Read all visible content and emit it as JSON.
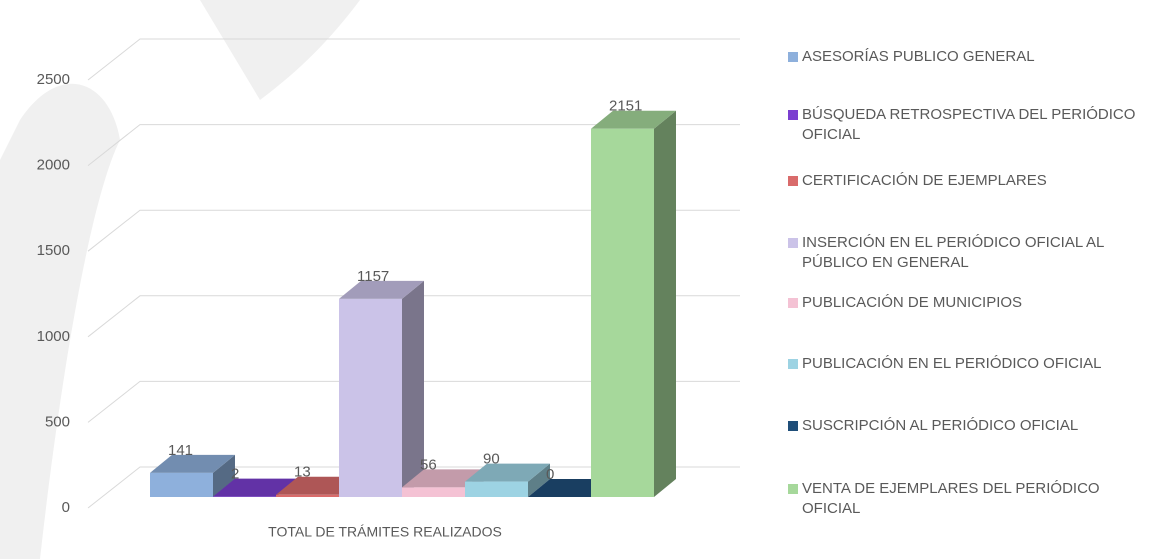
{
  "chart_data": {
    "type": "bar3d",
    "categories": [
      "TOTAL DE TRÁMITES REALIZADOS"
    ],
    "series": [
      {
        "name": "ASESORÍAS PUBLICO GENERAL",
        "color": "#8eb0dc",
        "values": [
          141
        ]
      },
      {
        "name": "BÚSQUEDA RETROSPECTIVA DEL PERIÓDICO OFICIAL",
        "color": "#7b3fd0",
        "values": [
          2
        ]
      },
      {
        "name": "CERTIFICACIÓN DE EJEMPLARES",
        "color": "#d96b6b",
        "values": [
          13
        ]
      },
      {
        "name": "INSERCIÓN EN EL PERIÓDICO OFICIAL AL PÚBLICO EN GENERAL",
        "color": "#cbc3e8",
        "values": [
          1157
        ]
      },
      {
        "name": "PUBLICACIÓN DE MUNICIPIOS",
        "color": "#f4c2d4",
        "values": [
          56
        ]
      },
      {
        "name": "PUBLICACIÓN EN EL PERIÓDICO OFICIAL",
        "color": "#9dd3e3",
        "values": [
          90
        ]
      },
      {
        "name": "SUSCRIPCIÓN AL PERIÓDICO OFICIAL",
        "color": "#1f4e79",
        "values": [
          0
        ]
      },
      {
        "name": "VENTA DE EJEMPLARES DEL PERIÓDICO OFICIAL",
        "color": "#a6d89b",
        "values": [
          2151
        ]
      }
    ],
    "ylim": [
      0,
      2500
    ],
    "yticks": [
      0,
      500,
      1000,
      1500,
      2000,
      2500
    ],
    "grid": true,
    "legend": "right"
  }
}
